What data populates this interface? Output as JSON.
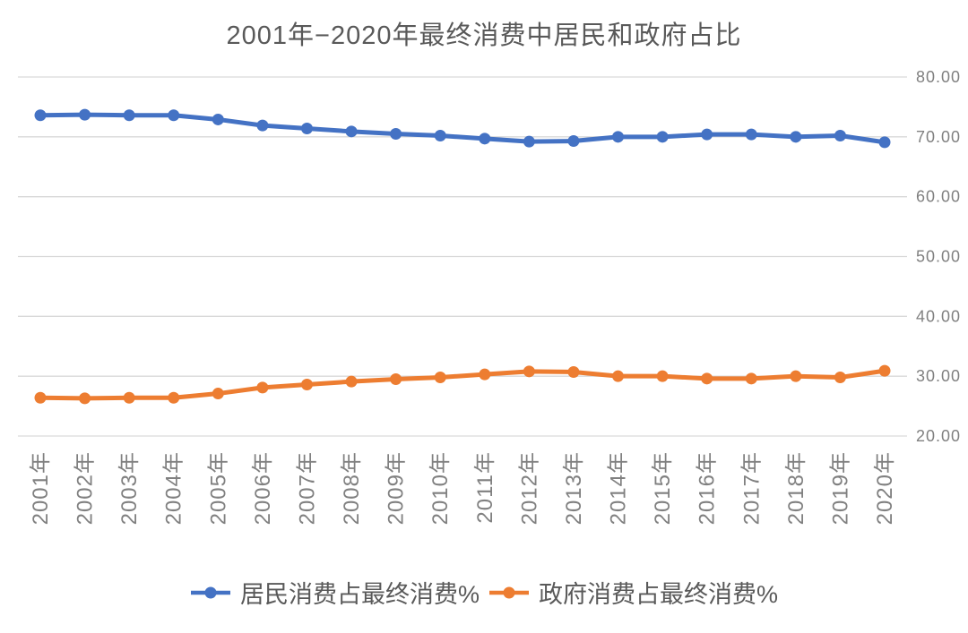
{
  "title": "2001年−2020年最终消费中居民和政府占比",
  "chart_data": {
    "type": "line",
    "title": "2001年−2020年最终消费中居民和政府占比",
    "categories": [
      "2001年",
      "2002年",
      "2003年",
      "2004年",
      "2005年",
      "2006年",
      "2007年",
      "2008年",
      "2009年",
      "2010年",
      "2011年",
      "2012年",
      "2013年",
      "2014年",
      "2015年",
      "2016年",
      "2017年",
      "2018年",
      "2019年",
      "2020年"
    ],
    "series": [
      {
        "name": "居民消费占最终消费%",
        "color": "#4472C4",
        "values": [
          73.6,
          73.7,
          73.6,
          73.6,
          72.9,
          71.9,
          71.4,
          70.9,
          70.5,
          70.2,
          69.7,
          69.2,
          69.3,
          70.0,
          70.0,
          70.4,
          70.4,
          70.0,
          70.2,
          69.1
        ]
      },
      {
        "name": "政府消费占最终消费%",
        "color": "#ED7D31",
        "values": [
          26.4,
          26.3,
          26.4,
          26.4,
          27.1,
          28.1,
          28.6,
          29.1,
          29.5,
          29.8,
          30.3,
          30.8,
          30.7,
          30.0,
          30.0,
          29.6,
          29.6,
          30.0,
          29.8,
          30.9
        ]
      }
    ],
    "y_axis": {
      "min": 20,
      "max": 80,
      "step": 10,
      "side": "right",
      "tick_labels": [
        "80.00",
        "70.00",
        "60.00",
        "50.00",
        "40.00",
        "30.00",
        "20.00"
      ]
    },
    "xlabel": "",
    "ylabel": "",
    "grid": true,
    "legend_position": "bottom"
  },
  "colors": {
    "background": "#FFFFFF",
    "title_text": "#595959",
    "axis_text": "#808080",
    "gridline": "#D9D9D9",
    "series_blue": "#4472C4",
    "series_orange": "#ED7D31",
    "legend_text": "#595959"
  }
}
